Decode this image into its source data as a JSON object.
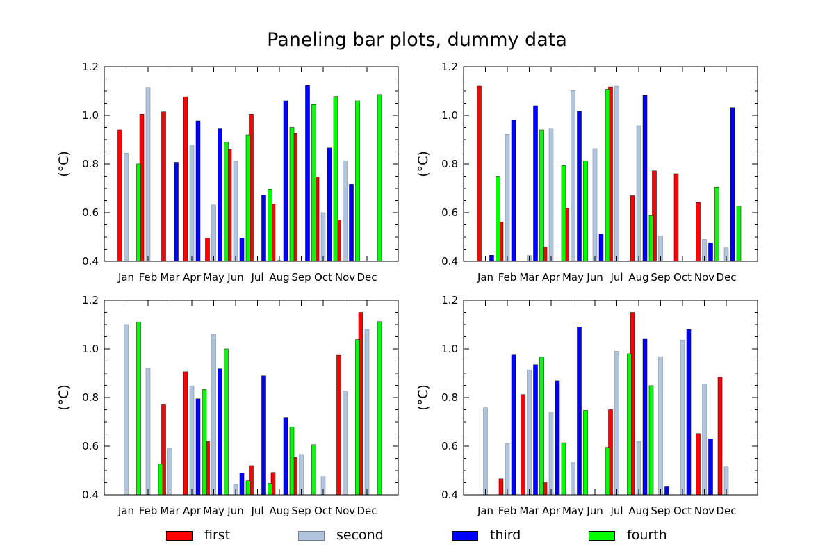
{
  "title": "Paneling bar plots, dummy data",
  "chart_data": {
    "type": "bar",
    "title": "Paneling bar plots, dummy data",
    "categories": [
      "Jan",
      "Feb",
      "Mar",
      "Apr",
      "May",
      "Jun",
      "Jul",
      "Aug",
      "Sep",
      "Oct",
      "Nov",
      "Dec"
    ],
    "ylabel": "(°C)",
    "ylim": [
      0.4,
      1.2
    ],
    "yticks": [
      "0.4",
      "0.6",
      "0.8",
      "1.0",
      "1.2"
    ],
    "legend_position": "bottom",
    "series_names": [
      "first",
      "second",
      "third",
      "fourth"
    ],
    "colors": [
      "#ff0000",
      "#b0c4de",
      "#0000ff",
      "#00ff00"
    ],
    "panels": [
      {
        "name": "top-left",
        "series": [
          {
            "name": "first",
            "values": [
              0.94,
              1.005,
              1.015,
              1.077,
              0.495,
              0.86,
              1.005,
              0.635,
              0.925,
              0.747,
              0.57,
              null
            ]
          },
          {
            "name": "second",
            "values": [
              0.845,
              1.115,
              null,
              0.878,
              0.632,
              0.81,
              null,
              0.405,
              null,
              0.6,
              0.812,
              null
            ]
          },
          {
            "name": "third",
            "values": [
              null,
              null,
              0.807,
              0.977,
              0.947,
              0.495,
              0.673,
              1.06,
              1.122,
              0.866,
              0.716,
              null
            ]
          },
          {
            "name": "fourth",
            "values": [
              0.8,
              null,
              null,
              null,
              0.89,
              0.92,
              0.696,
              0.95,
              1.045,
              1.078,
              1.06,
              1.086
            ]
          }
        ]
      },
      {
        "name": "top-right",
        "series": [
          {
            "name": "first",
            "values": [
              1.12,
              0.562,
              null,
              0.458,
              0.618,
              null,
              1.117,
              0.67,
              0.772,
              0.76,
              0.642,
              null
            ]
          },
          {
            "name": "second",
            "values": [
              null,
              0.922,
              0.424,
              0.946,
              1.102,
              0.863,
              1.12,
              0.957,
              0.505,
              null,
              0.49,
              0.455
            ]
          },
          {
            "name": "third",
            "values": [
              0.425,
              0.98,
              1.04,
              null,
              1.017,
              0.513,
              null,
              1.082,
              null,
              null,
              0.476,
              1.032
            ]
          },
          {
            "name": "fourth",
            "values": [
              0.75,
              null,
              0.94,
              0.793,
              0.812,
              1.107,
              null,
              0.588,
              null,
              null,
              0.705,
              0.628
            ]
          }
        ]
      },
      {
        "name": "bottom-left",
        "series": [
          {
            "name": "first",
            "values": [
              null,
              null,
              0.77,
              0.906,
              0.619,
              null,
              0.52,
              0.492,
              0.553,
              null,
              0.974,
              1.15
            ]
          },
          {
            "name": "second",
            "values": [
              1.1,
              0.92,
              0.59,
              0.848,
              1.06,
              0.443,
              null,
              null,
              0.566,
              0.475,
              0.827,
              1.08
            ]
          },
          {
            "name": "third",
            "values": [
              null,
              null,
              null,
              0.795,
              0.918,
              0.49,
              0.889,
              0.718,
              null,
              null,
              null,
              null
            ]
          },
          {
            "name": "fourth",
            "values": [
              1.11,
              0.527,
              null,
              0.833,
              1.0,
              0.458,
              0.447,
              0.678,
              0.606,
              null,
              1.038,
              1.112
            ]
          }
        ]
      },
      {
        "name": "bottom-right",
        "series": [
          {
            "name": "first",
            "values": [
              null,
              0.466,
              0.812,
              0.45,
              null,
              null,
              0.75,
              1.15,
              null,
              null,
              0.652,
              0.883
            ]
          },
          {
            "name": "second",
            "values": [
              0.758,
              0.61,
              0.914,
              0.738,
              0.532,
              null,
              0.99,
              0.62,
              0.968,
              1.036,
              0.855,
              0.515
            ]
          },
          {
            "name": "third",
            "values": [
              null,
              0.975,
              0.935,
              0.869,
              1.09,
              null,
              null,
              1.04,
              0.433,
              1.08,
              0.63,
              null
            ]
          },
          {
            "name": "fourth",
            "values": [
              null,
              null,
              0.966,
              0.614,
              0.747,
              0.595,
              0.98,
              0.849,
              null,
              null,
              null,
              null
            ]
          }
        ]
      }
    ]
  }
}
